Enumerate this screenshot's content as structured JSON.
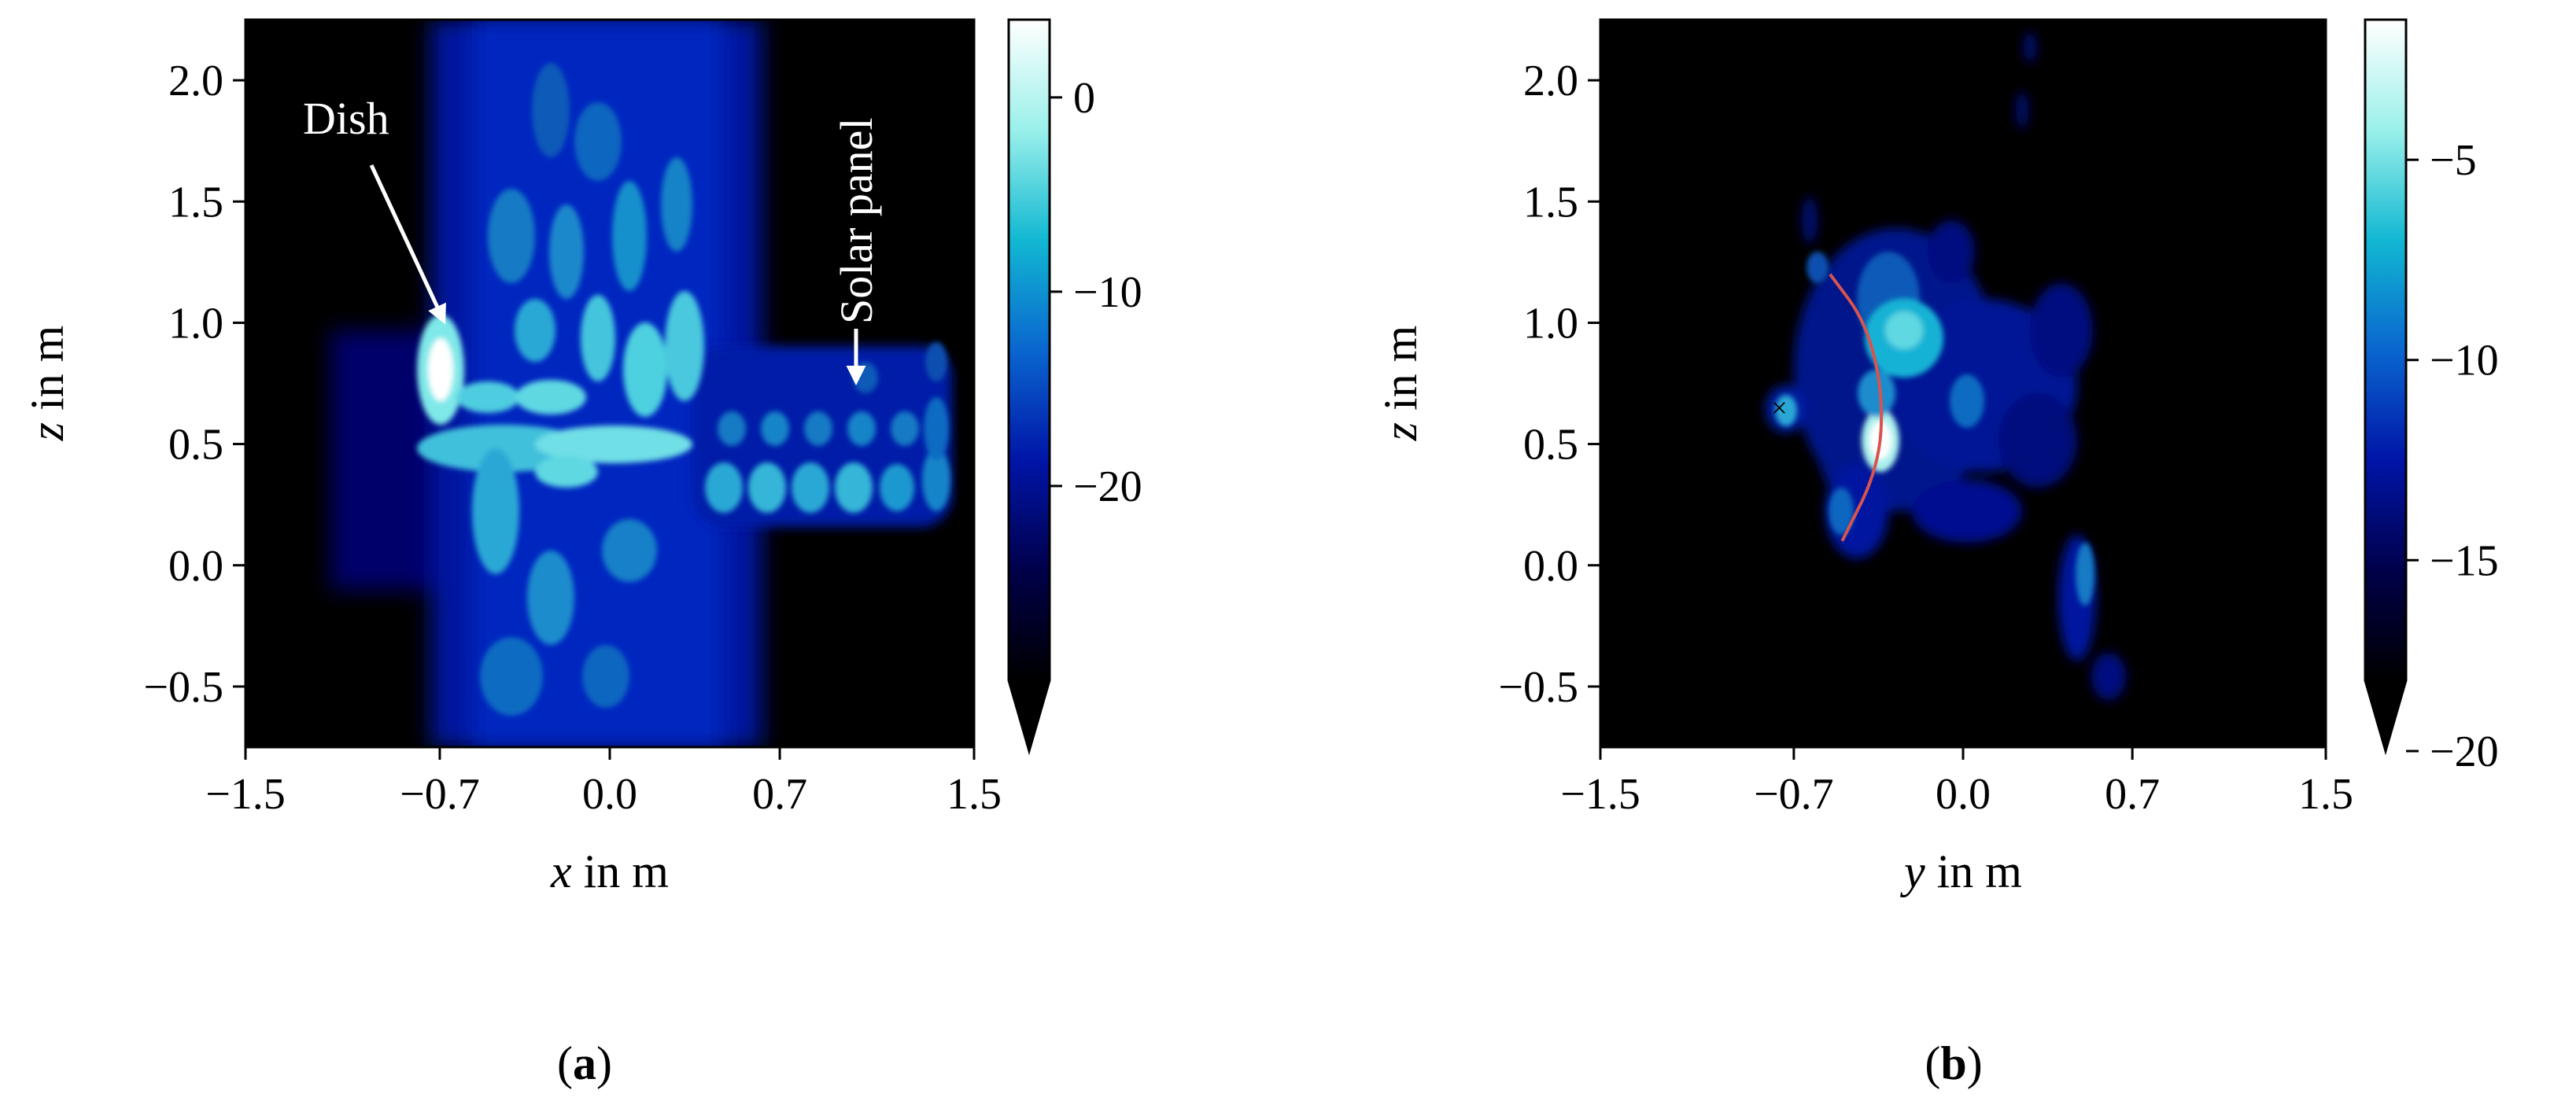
{
  "colormap": {
    "name": "dark-to-blue-to-cyan-to-white",
    "stops": [
      "#000000",
      "#00004a",
      "#0015a8",
      "#0a66cf",
      "#12b8d2",
      "#9af0ea",
      "#ffffff"
    ],
    "over_under": "black"
  },
  "chart_data": [
    {
      "type": "heatmap",
      "panel_label": "(a)",
      "panel_letter": "a",
      "xlabel_var": "x",
      "ylabel_var": "z",
      "label_unit": " in m",
      "xlim": [
        -1.5,
        1.5
      ],
      "ylim": [
        -0.75,
        2.25
      ],
      "xticks": [
        -1.5,
        -0.7,
        0.0,
        0.7,
        1.5
      ],
      "xtick_labels": [
        "−1.5",
        "−0.7",
        "0.0",
        "0.7",
        "1.5"
      ],
      "yticks": [
        -0.5,
        0.0,
        0.5,
        1.0,
        1.5,
        2.0
      ],
      "ytick_labels": [
        "−0.5",
        "0.0",
        "0.5",
        "1.0",
        "1.5",
        "2.0"
      ],
      "colorbar": {
        "range": [
          -30,
          4
        ],
        "ticks": [
          0,
          -10,
          -20
        ],
        "tick_labels": [
          "0",
          "−10",
          "−20"
        ],
        "extend": "min"
      },
      "annotations": [
        {
          "text": "Dish",
          "target": [
            -0.7,
            1.0
          ]
        },
        {
          "text": "Solar panel",
          "target": [
            1.0,
            0.75
          ]
        }
      ],
      "features": [
        {
          "name": "central body",
          "x": [
            -0.75,
            0.45
          ],
          "z": [
            -0.75,
            2.25
          ],
          "level_db": -20
        },
        {
          "name": "dish",
          "x": -0.7,
          "z": 0.8,
          "level_db": 0
        },
        {
          "name": "solar panel",
          "x": [
            0.45,
            1.4
          ],
          "z": [
            0.2,
            0.7
          ],
          "level_db": -12
        }
      ]
    },
    {
      "type": "heatmap",
      "panel_label": "(b)",
      "panel_letter": "b",
      "xlabel_var": "y",
      "ylabel_var": "z",
      "label_unit": " in m",
      "xlim": [
        -1.5,
        1.5
      ],
      "ylim": [
        -0.75,
        2.25
      ],
      "xticks": [
        -1.5,
        -0.7,
        0.0,
        0.7,
        1.5
      ],
      "xtick_labels": [
        "−1.5",
        "−0.7",
        "0.0",
        "0.7",
        "1.5"
      ],
      "yticks": [
        -0.5,
        0.0,
        0.5,
        1.0,
        1.5,
        2.0
      ],
      "ytick_labels": [
        "−0.5",
        "0.0",
        "0.5",
        "1.0",
        "1.5",
        "2.0"
      ],
      "colorbar": {
        "range": [
          -18,
          -1.5
        ],
        "ticks": [
          -5,
          -10,
          -15,
          -20
        ],
        "tick_labels": [
          "−5",
          "−10",
          "−15",
          "−20"
        ],
        "extend": "min"
      },
      "overlays": {
        "arc": {
          "color": "#d9534f",
          "points": [
            [
              -0.55,
              1.2
            ],
            [
              -0.4,
              1.0
            ],
            [
              -0.33,
              0.7
            ],
            [
              -0.35,
              0.4
            ],
            [
              -0.5,
              0.1
            ]
          ]
        },
        "marker": {
          "symbol": "×",
          "color": "#d9534f",
          "x": -0.76,
          "z": 0.65
        }
      },
      "features": [
        {
          "name": "dish",
          "x": -0.37,
          "z": 0.5,
          "level_db": -1.5
        },
        {
          "name": "body",
          "x": -0.35,
          "z": 0.9,
          "level_db": -8
        },
        {
          "name": "marker blob",
          "x": -0.76,
          "z": 0.65,
          "level_db": -8
        }
      ]
    }
  ]
}
